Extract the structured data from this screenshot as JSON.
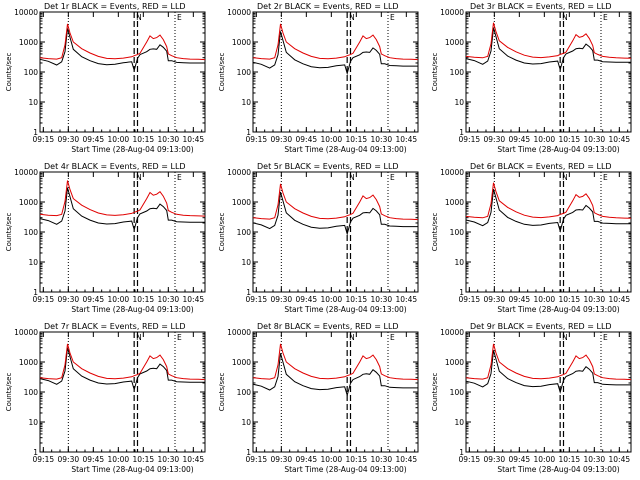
{
  "figure": {
    "xlabel": "Start Time (28-Aug-04 09:13:00)",
    "ylabel": "Counts/sec"
  },
  "chart_data": {
    "type": "line",
    "y_scale": "log",
    "ylim": [
      1,
      10000
    ],
    "y_ticks": [
      1,
      10,
      100,
      1000,
      10000
    ],
    "y_tick_labels": [
      "1",
      "10",
      "100",
      "1000",
      "10000"
    ],
    "x_range_minutes": [
      0,
      99
    ],
    "x_ticks_minutes": [
      2,
      17,
      32,
      47,
      62,
      77,
      92
    ],
    "x_tick_labels": [
      "09:15",
      "09:30",
      "09:45",
      "10:00",
      "10:15",
      "10:30",
      "10:45"
    ],
    "series_names": [
      "Events",
      "LLD"
    ],
    "colors": {
      "Events": "#000000",
      "LLD": "#e00000"
    },
    "markers": [
      {
        "type": "dotted",
        "minute": 17
      },
      {
        "type": "dashed",
        "minute": 56.5,
        "label": "N"
      },
      {
        "type": "dashed",
        "minute": 58.5,
        "label": ""
      },
      {
        "type": "dotted",
        "minute": 81,
        "label": "E"
      }
    ],
    "time_minutes": [
      0,
      5,
      10,
      13,
      15,
      16.5,
      18,
      20,
      25,
      30,
      35,
      40,
      45,
      50,
      55,
      56.5,
      58.5,
      60,
      64,
      66,
      68,
      70,
      72,
      74,
      76,
      77,
      79,
      82,
      86,
      90,
      95,
      99
    ],
    "events_scale_per_det": [
      0.95,
      0.75,
      1.0,
      1.0,
      0.72,
      0.9,
      1.0,
      0.65,
      0.82
    ],
    "lld_scale_per_det": [
      1.0,
      1.0,
      1.1,
      1.3,
      1.0,
      1.1,
      1.0,
      1.0,
      1.0
    ],
    "panels": [
      {
        "title": "Det 1r BLACK = Events, RED = LLD"
      },
      {
        "title": "Det 2r BLACK = Events, RED = LLD"
      },
      {
        "title": "Det 3r BLACK = Events, RED = LLD"
      },
      {
        "title": "Det 4r BLACK = Events, RED = LLD"
      },
      {
        "title": "Det 5r BLACK = Events, RED = LLD"
      },
      {
        "title": "Det 6r BLACK = Events, RED = LLD"
      },
      {
        "title": "Det 7r BLACK = Events, RED = LLD"
      },
      {
        "title": "Det 8r BLACK = Events, RED = LLD"
      },
      {
        "title": "Det 9r BLACK = Events, RED = LLD"
      }
    ],
    "series_template": {
      "Events": [
        280,
        240,
        180,
        230,
        500,
        3000,
        1500,
        600,
        340,
        250,
        200,
        185,
        190,
        215,
        230,
        120,
        300,
        400,
        500,
        600,
        620,
        600,
        850,
        700,
        520,
        250,
        250,
        220,
        215,
        210,
        210,
        210
      ],
      "LLD": [
        300,
        280,
        270,
        300,
        800,
        4000,
        2000,
        1000,
        600,
        430,
        330,
        285,
        275,
        290,
        320,
        350,
        380,
        420,
        1000,
        1600,
        1300,
        1400,
        1700,
        1200,
        700,
        400,
        350,
        300,
        280,
        270,
        265,
        260
      ]
    }
  }
}
